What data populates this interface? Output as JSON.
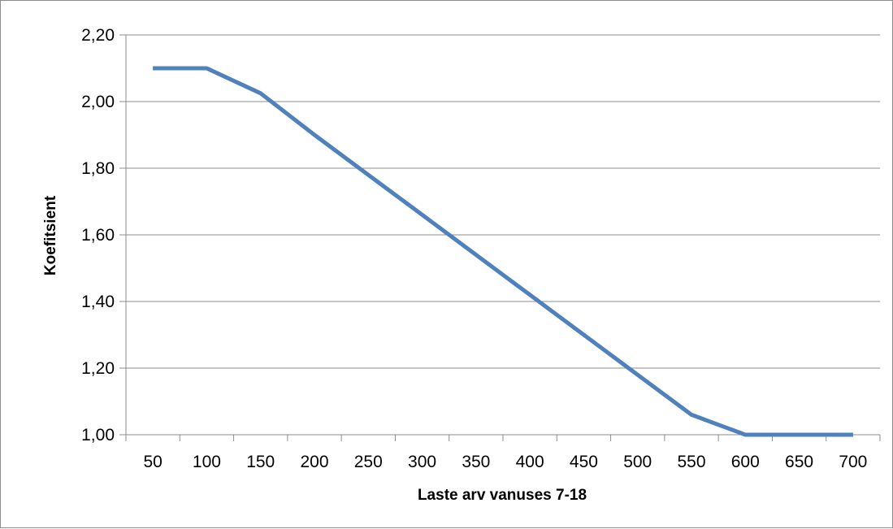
{
  "chart_data": {
    "type": "line",
    "title": "",
    "xlabel": "Laste arv vanuses 7-18",
    "ylabel": "Koefitsient",
    "categories": [
      "50",
      "100",
      "150",
      "200",
      "250",
      "300",
      "350",
      "400",
      "450",
      "500",
      "550",
      "600",
      "650",
      "700"
    ],
    "series": [
      {
        "values": [
          2.1,
          2.1,
          2.025,
          1.9,
          1.78,
          1.66,
          1.54,
          1.42,
          1.3,
          1.18,
          1.06,
          1.0,
          1.0,
          1.0
        ]
      }
    ],
    "y_ticks": [
      "1,00",
      "1,20",
      "1,40",
      "1,60",
      "1,80",
      "2,00",
      "2,20"
    ],
    "ylim": [
      1.0,
      2.2
    ],
    "y_step": 0.2,
    "grid": true,
    "legend": "none",
    "colors": {
      "line": "#4f81bd",
      "grid": "#8c8c8c",
      "axis": "#8c8c8c"
    }
  }
}
